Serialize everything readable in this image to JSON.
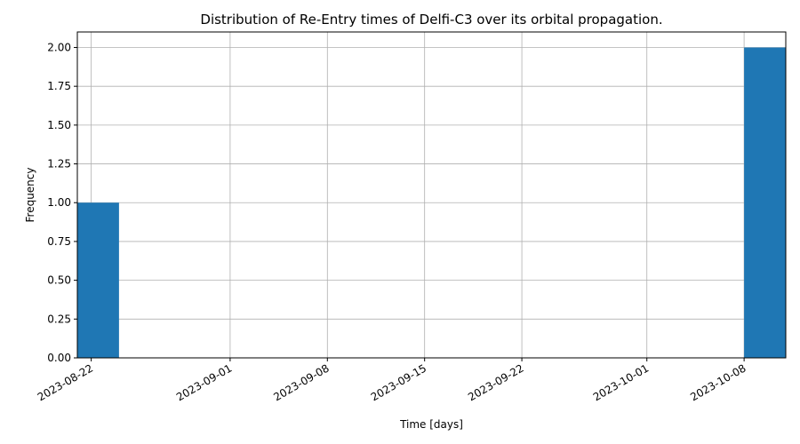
{
  "chart_data": {
    "type": "bar",
    "title": "Distribution of Re-Entry times of Delfi-C3 over its orbital propagation.",
    "xlabel": "Time [days]",
    "ylabel": "Frequency",
    "bins": [
      {
        "start": "2023-08-21",
        "end": "2023-08-24",
        "value": 1
      },
      {
        "start": "2023-10-08",
        "end": "2023-10-11",
        "value": 2
      }
    ],
    "xlim": [
      "2023-08-21",
      "2023-10-11"
    ],
    "ylim": [
      0,
      2.1
    ],
    "x_ticks": [
      "2023-08-22",
      "2023-09-01",
      "2023-09-08",
      "2023-09-15",
      "2023-09-22",
      "2023-10-01",
      "2023-10-08"
    ],
    "y_ticks": [
      "0.00",
      "0.25",
      "0.50",
      "0.75",
      "1.00",
      "1.25",
      "1.50",
      "1.75",
      "2.00"
    ],
    "grid": true,
    "bar_color": "#1f77b4",
    "grid_color": "#b0b0b0"
  }
}
